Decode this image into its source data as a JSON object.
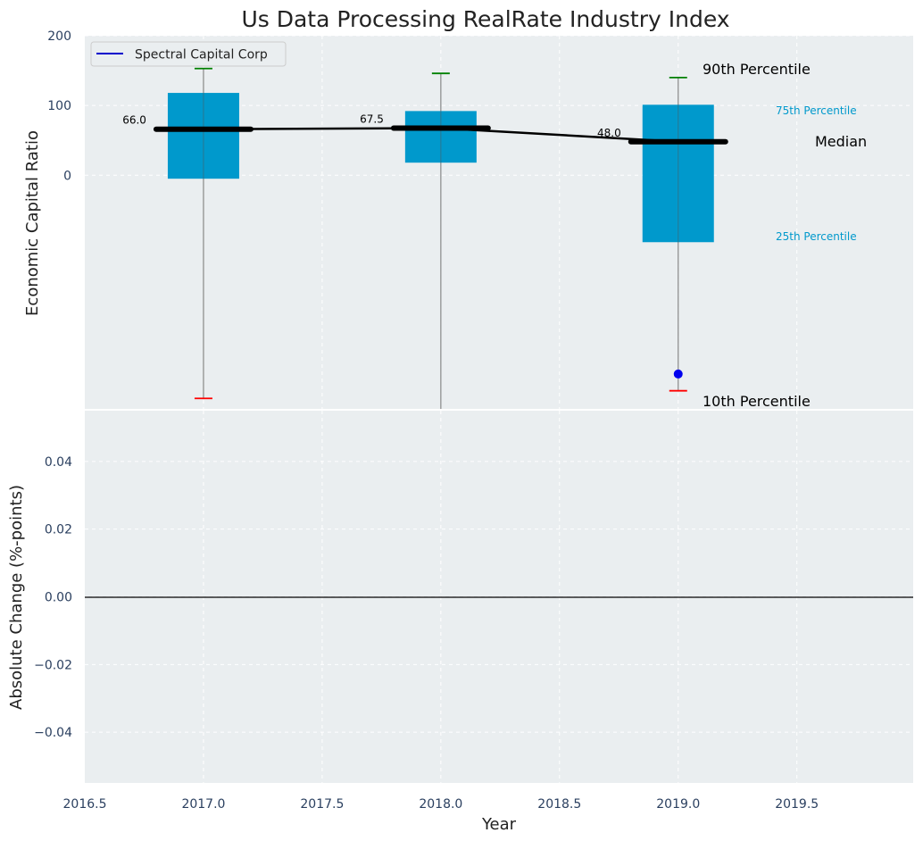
{
  "chart_data": [
    {
      "type": "box",
      "title": "Us Data Processing RealRate Industry Index",
      "xlabel": "",
      "ylabel": "Economic Capital Ratio",
      "xlim": [
        2016.5,
        2019.99
      ],
      "ylim": [
        -335,
        200
      ],
      "yticks": [
        0,
        100,
        200
      ],
      "grid": true,
      "legend": {
        "position": "top-left",
        "entries": [
          {
            "label": "Spectral Capital Corp",
            "color": "#0000cc"
          }
        ]
      },
      "boxes": [
        {
          "x": 2017,
          "p10": -320,
          "p25": -5,
          "median": 66.0,
          "p75": 118,
          "p90": 153
        },
        {
          "x": 2018,
          "p10": -345,
          "p25": 18,
          "median": 67.5,
          "p75": 92,
          "p90": 146
        },
        {
          "x": 2019,
          "p10": -309,
          "p25": -96,
          "median": 48.0,
          "p75": 101,
          "p90": 140
        }
      ],
      "median_labels": [
        "66.0",
        "67.5",
        "48.0"
      ],
      "company_series": {
        "name": "Spectral Capital Corp",
        "points": [
          {
            "x": 2019,
            "y": -285
          }
        ]
      },
      "annotations": {
        "p90": "90th Percentile",
        "p75": "75th Percentile",
        "median": "Median",
        "p25": "25th Percentile",
        "p10": "10th Percentile"
      },
      "colors": {
        "box": "#0099cc",
        "median": "#000000",
        "p90_cap": "#008000",
        "p10_cap": "#ff0000",
        "company": "#0000ee",
        "background": "#eaeef0"
      }
    },
    {
      "type": "line",
      "title": "",
      "xlabel": "Year",
      "ylabel": "Absolute Change (%-points)",
      "xlim": [
        2016.5,
        2019.99
      ],
      "ylim": [
        -0.055,
        0.055
      ],
      "xticks": [
        "2016.5",
        "2017.0",
        "2017.5",
        "2018.0",
        "2018.5",
        "2019.0",
        "2019.5"
      ],
      "yticks": [
        "0.04",
        "0.02",
        "0.00",
        "−0.02",
        "−0.04"
      ],
      "ytick_values": [
        0.04,
        0.02,
        0.0,
        -0.02,
        -0.04
      ],
      "zero_line": 0,
      "grid": true,
      "series": []
    }
  ]
}
